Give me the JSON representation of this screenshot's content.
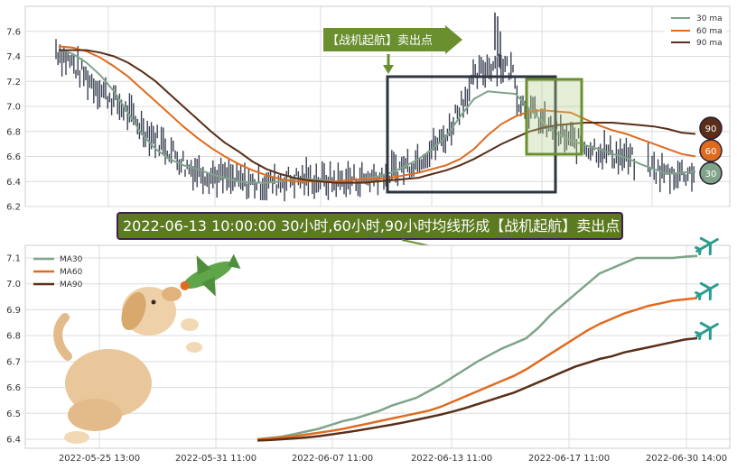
{
  "colors": {
    "ma30": "#7ea48a",
    "ma60": "#e06b1f",
    "ma90": "#5a2e18",
    "candle": "#3a4252",
    "grid": "#dcdcdc",
    "frame": "#cccccc",
    "box_dark": "#2e3440",
    "box_green": "#6a8f2e",
    "banner_fill": "#5c7a20",
    "banner_border": "#3f1f4f"
  },
  "top_annotation": {
    "arrow_label": "【战机起航】卖出点"
  },
  "banner": {
    "text": "2022-06-13 10:00:00 30小时,60小时,90小时均线形成【战机起航】卖出点"
  },
  "badges": [
    {
      "label": "90",
      "color": "#5a2e18",
      "value": 6.8
    },
    {
      "label": "60",
      "color": "#e06b1f",
      "value": 6.6
    },
    {
      "label": "30",
      "color": "#7ea48a",
      "value": 6.42
    }
  ],
  "icons": {
    "plane": "airplane-icon",
    "dog": "dog-with-plane-illustration"
  },
  "chart_data": [
    {
      "type": "line",
      "ylim": [
        6.2,
        7.8
      ],
      "yticks": [
        "6.2",
        "6.4",
        "6.6",
        "6.8",
        "7.0",
        "7.2",
        "7.4",
        "7.6"
      ],
      "legend": {
        "position": "top-right",
        "entries": [
          "30 ma",
          "60 ma",
          "90 ma"
        ]
      },
      "grid": true,
      "candles": "hourly price bars, range approx 6.2 to 7.75",
      "series": [
        {
          "name": "30 ma",
          "color": "#7ea48a",
          "values": [
            7.46,
            7.42,
            7.35,
            7.25,
            7.12,
            6.95,
            6.78,
            6.66,
            6.58,
            6.53,
            6.5,
            6.46,
            6.43,
            6.4,
            6.39,
            6.39,
            6.4,
            6.42,
            6.42,
            6.41,
            6.4,
            6.41,
            6.42,
            6.44,
            6.47,
            6.52,
            6.58,
            6.66,
            6.76,
            6.92,
            7.06,
            7.12,
            7.11,
            7.1,
            6.98,
            6.87,
            6.78,
            6.73,
            6.69,
            6.66,
            6.62,
            6.59,
            6.54,
            6.5,
            6.46,
            6.47,
            6.48
          ]
        },
        {
          "name": "60 ma",
          "color": "#e06b1f",
          "values": [
            7.48,
            7.47,
            7.44,
            7.39,
            7.32,
            7.24,
            7.14,
            7.04,
            6.94,
            6.84,
            6.75,
            6.67,
            6.6,
            6.54,
            6.49,
            6.45,
            6.42,
            6.4,
            6.4,
            6.4,
            6.4,
            6.41,
            6.42,
            6.42,
            6.43,
            6.45,
            6.47,
            6.5,
            6.53,
            6.58,
            6.66,
            6.77,
            6.86,
            6.92,
            6.96,
            6.97,
            6.96,
            6.95,
            6.9,
            6.85,
            6.81,
            6.78,
            6.74,
            6.7,
            6.66,
            6.62,
            6.6
          ]
        },
        {
          "name": "90 ma",
          "color": "#5a2e18",
          "values": [
            7.45,
            7.45,
            7.45,
            7.43,
            7.4,
            7.35,
            7.28,
            7.2,
            7.1,
            7.0,
            6.9,
            6.8,
            6.71,
            6.64,
            6.56,
            6.5,
            6.46,
            6.43,
            6.41,
            6.4,
            6.39,
            6.39,
            6.39,
            6.4,
            6.41,
            6.42,
            6.43,
            6.46,
            6.49,
            6.53,
            6.58,
            6.64,
            6.7,
            6.75,
            6.8,
            6.83,
            6.85,
            6.86,
            6.87,
            6.87,
            6.87,
            6.86,
            6.85,
            6.84,
            6.82,
            6.79,
            6.78
          ]
        }
      ]
    },
    {
      "type": "line",
      "ylim": [
        6.4,
        7.1
      ],
      "yticks": [
        "6.4",
        "6.5",
        "6.6",
        "6.7",
        "6.8",
        "6.9",
        "7.0",
        "7.1"
      ],
      "xticks": [
        "2022-05-25 13:00",
        "2022-05-31 11:00",
        "2022-06-07 11:00",
        "2022-06-13 11:00",
        "2022-06-17 11:00",
        "2022-06-30 14:00"
      ],
      "legend": {
        "position": "top-left",
        "entries": [
          "MA30",
          "MA60",
          "MA90"
        ]
      },
      "grid": true,
      "series": [
        {
          "name": "MA30",
          "color": "#7ea48a",
          "values": [
            6.4,
            6.405,
            6.41,
            6.42,
            6.43,
            6.44,
            6.455,
            6.47,
            6.48,
            6.495,
            6.51,
            6.53,
            6.545,
            6.56,
            6.585,
            6.61,
            6.64,
            6.67,
            6.7,
            6.725,
            6.75,
            6.77,
            6.79,
            6.83,
            6.88,
            6.92,
            6.96,
            7.0,
            7.04,
            7.06,
            7.08,
            7.1,
            7.1,
            7.1,
            7.1,
            7.105,
            7.108
          ]
        },
        {
          "name": "MA60",
          "color": "#e06b1f",
          "values": [
            6.4,
            6.403,
            6.407,
            6.412,
            6.418,
            6.425,
            6.432,
            6.44,
            6.45,
            6.46,
            6.47,
            6.48,
            6.49,
            6.5,
            6.51,
            6.525,
            6.545,
            6.565,
            6.585,
            6.605,
            6.625,
            6.645,
            6.67,
            6.7,
            6.73,
            6.76,
            6.79,
            6.82,
            6.845,
            6.865,
            6.885,
            6.9,
            6.915,
            6.925,
            6.935,
            6.94,
            6.945
          ]
        },
        {
          "name": "MA90",
          "color": "#5a2e18",
          "values": [
            6.395,
            6.397,
            6.4,
            6.403,
            6.407,
            6.412,
            6.418,
            6.425,
            6.432,
            6.44,
            6.448,
            6.456,
            6.465,
            6.475,
            6.485,
            6.495,
            6.507,
            6.52,
            6.535,
            6.55,
            6.565,
            6.58,
            6.6,
            6.62,
            6.64,
            6.66,
            6.68,
            6.695,
            6.71,
            6.72,
            6.735,
            6.745,
            6.755,
            6.765,
            6.775,
            6.785,
            6.79
          ]
        }
      ]
    }
  ]
}
